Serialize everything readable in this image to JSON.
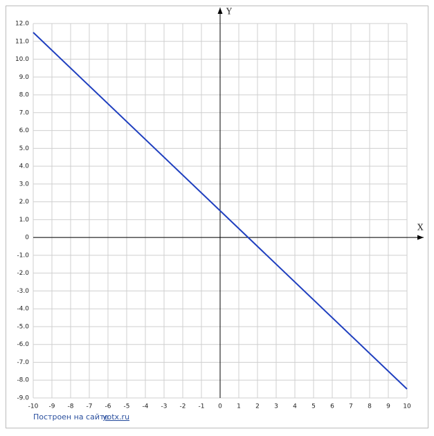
{
  "chart_data": {
    "type": "line",
    "xlabel": "X",
    "ylabel": "Y",
    "x": [
      -10,
      10
    ],
    "series": [
      {
        "color": "#1f3fbf",
        "values": [
          11.5,
          -8.5
        ]
      }
    ],
    "xlim": [
      -10,
      10
    ],
    "ylim": [
      -9,
      12
    ],
    "xticks": [
      -10,
      -9,
      -8,
      -7,
      -6,
      -5,
      -4,
      -3,
      -2,
      -1,
      0,
      1,
      2,
      3,
      4,
      5,
      6,
      7,
      8,
      9,
      10
    ],
    "yticks": [
      {
        "value": -9,
        "label": "-9.0"
      },
      {
        "value": -8,
        "label": "-8.0"
      },
      {
        "value": -7,
        "label": "-7.0"
      },
      {
        "value": -6,
        "label": "-6.0"
      },
      {
        "value": -5,
        "label": "-5.0"
      },
      {
        "value": -4,
        "label": "-4.0"
      },
      {
        "value": -3,
        "label": "-3.0"
      },
      {
        "value": -2,
        "label": "-2.0"
      },
      {
        "value": -1,
        "label": "-1.0"
      },
      0,
      {
        "value": 1,
        "label": "1.0"
      },
      {
        "value": 2,
        "label": "2.0"
      },
      {
        "value": 3,
        "label": "3.0"
      },
      {
        "value": 4,
        "label": "4.0"
      },
      {
        "value": 5,
        "label": "5.0"
      },
      {
        "value": 6,
        "label": "6.0"
      },
      {
        "value": 7,
        "label": "7.0"
      },
      {
        "value": 8,
        "label": "8.0"
      },
      {
        "value": 9,
        "label": "9.0"
      },
      {
        "value": 10,
        "label": "10.0"
      },
      {
        "value": 11,
        "label": "11.0"
      },
      {
        "value": 12,
        "label": "12.0"
      }
    ],
    "grid": true
  },
  "footer": {
    "text": "Построен на сайте",
    "link": "yotx.ru"
  }
}
